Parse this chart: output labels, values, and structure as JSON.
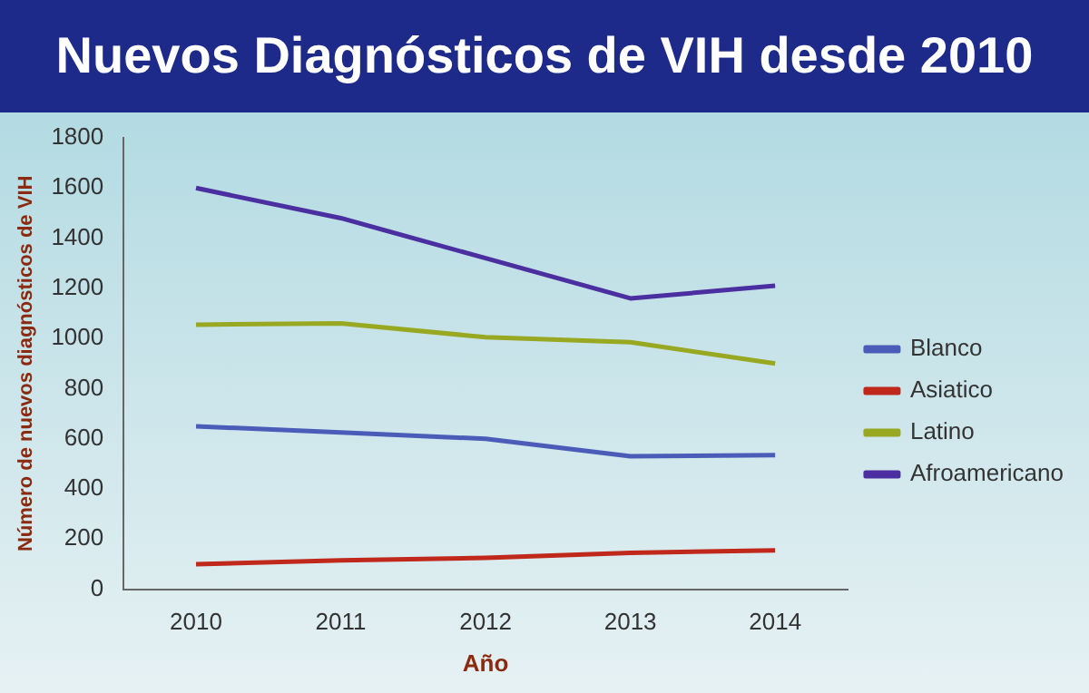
{
  "chart_data": {
    "type": "line",
    "title": "Nuevos Diagnósticos de VIH desde 2010",
    "xlabel": "Año",
    "ylabel": "Número de nuevos diagnósticos de VIH",
    "categories": [
      "2010",
      "2011",
      "2012",
      "2013",
      "2014"
    ],
    "series": [
      {
        "name": "Blanco",
        "color": "#4a5cb8",
        "values": [
          650,
          625,
          600,
          530,
          535
        ]
      },
      {
        "name": "Asiatico",
        "color": "#c0281c",
        "values": [
          100,
          115,
          125,
          145,
          155
        ]
      },
      {
        "name": "Latino",
        "color": "#98a820",
        "values": [
          1055,
          1060,
          1005,
          985,
          900
        ]
      },
      {
        "name": "Afroamericano",
        "color": "#4b2fa0",
        "values": [
          1600,
          1480,
          1320,
          1160,
          1210
        ]
      }
    ],
    "ylim": [
      0,
      1800
    ],
    "yticks": [
      0,
      200,
      400,
      600,
      800,
      1000,
      1200,
      1400,
      1600,
      1800
    ],
    "grid": false,
    "legend": "right",
    "marker": "none",
    "line_style": "solid"
  }
}
